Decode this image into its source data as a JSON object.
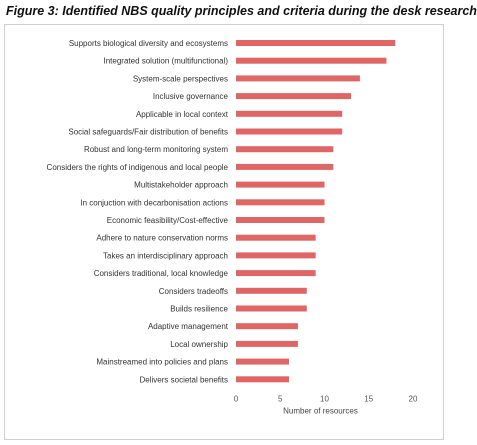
{
  "figure": {
    "title": "Figure 3: Identified NBS quality principles and criteria during the desk research"
  },
  "chart_data": {
    "type": "bar",
    "orientation": "horizontal",
    "title": "Figure 3: Identified NBS quality principles and criteria during the desk research",
    "xlabel": "Number of resources",
    "ylabel": "",
    "xlim": [
      0,
      20
    ],
    "xticks": [
      0,
      5,
      10,
      15,
      20
    ],
    "grid": false,
    "bar_color": "#e06666",
    "categories": [
      "Supports biological diversity and ecosystems",
      "Integrated solution (multifunctional)",
      "System-scale perspectives",
      "Inclusive governance",
      "Applicable in local context",
      "Social safeguards/Fair distribution of benefits",
      "Robust and long-term monitoring system",
      "Considers the rights of indigenous and local people",
      "Multistakeholder approach",
      "In conjuction with decarbonisation actions",
      "Economic feasibility/Cost-effective",
      "Adhere to nature conservation norms",
      "Takes an interdisciplinary approach",
      "Considers traditional, local knowledge",
      "Considers tradeoffs",
      "Builds resilience",
      "Adaptive management",
      "Local ownership",
      "Mainstreamed into policies and plans",
      "Delivers societal benefits"
    ],
    "values": [
      18,
      17,
      14,
      13,
      12,
      12,
      11,
      11,
      10,
      10,
      10,
      9,
      9,
      9,
      8,
      8,
      7,
      7,
      6,
      6
    ]
  }
}
